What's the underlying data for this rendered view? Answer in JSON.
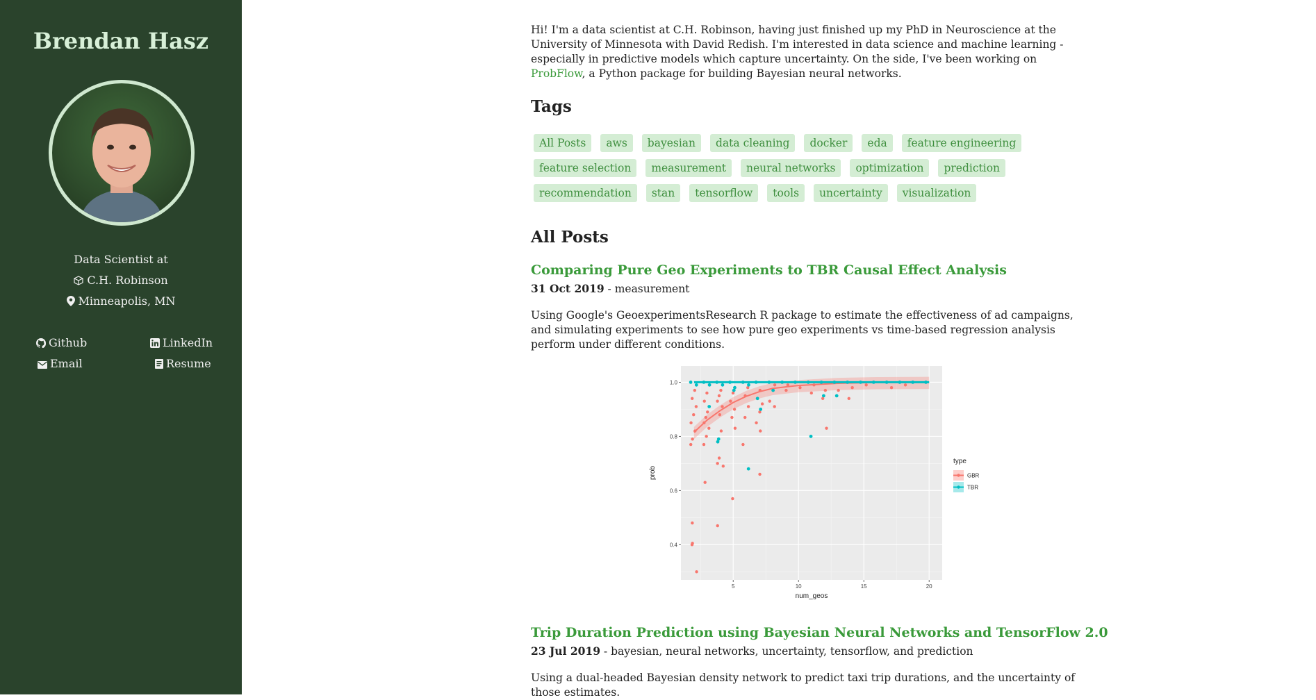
{
  "sidebar": {
    "name": "Brendan Hasz",
    "role": "Data Scientist at",
    "company": "C.H. Robinson",
    "location": "Minneapolis, MN",
    "links": {
      "github": "Github",
      "linkedin": "LinkedIn",
      "email": "Email",
      "resume": "Resume"
    }
  },
  "intro": {
    "text_before": "Hi! I'm a data scientist at C.H. Robinson, having just finished up my PhD in Neuroscience at the University of Minnesota with David Redish. I'm interested in data science and machine learning - especially in predictive models which capture uncertainty. On the side, I've been working on ",
    "link_text": "ProbFlow",
    "text_after": ", a Python package for building Bayesian neural networks."
  },
  "tags_heading": "Tags",
  "tags": [
    [
      "All Posts",
      "aws",
      "bayesian",
      "data cleaning",
      "docker",
      "eda",
      "feature engineering"
    ],
    [
      "feature selection",
      "measurement",
      "neural networks",
      "optimization",
      "prediction"
    ],
    [
      "recommendation",
      "stan",
      "tensorflow",
      "tools",
      "uncertainty",
      "visualization"
    ]
  ],
  "posts_heading": "All Posts",
  "posts": [
    {
      "title": "Comparing Pure Geo Experiments to TBR Causal Effect Analysis",
      "date": "31 Oct 2019",
      "tags": " - measurement",
      "description": "Using Google's GeoexperimentsResearch R package to estimate the effectiveness of ad campaigns, and simulating experiments to see how pure geo experiments vs time-based regression analysis perform under different conditions."
    },
    {
      "title": "Trip Duration Prediction using Bayesian Neural Networks and TensorFlow 2.0",
      "date": "23 Jul 2019",
      "tags": " - bayesian, neural networks, uncertainty, tensorflow, and prediction",
      "description": "Using a dual-headed Bayesian density network to predict taxi trip durations, and the uncertainty of those estimates."
    }
  ],
  "chart_data": {
    "type": "scatter",
    "xlabel": "num_geos",
    "ylabel": "prob",
    "xlim": [
      1,
      21
    ],
    "ylim": [
      0.27,
      1.06
    ],
    "xticks": [
      5,
      10,
      15,
      20
    ],
    "yticks": [
      0.4,
      0.6,
      0.8,
      1.0
    ],
    "ytick_labels": [
      "0.4",
      "0.6",
      "0.8",
      "1.0"
    ],
    "grid": true,
    "legend_title": "type",
    "legend_position": "right",
    "colors": {
      "GBR": "#f8766d",
      "TBR": "#00bfc4",
      "panel": "#ebebeb",
      "grid": "#ffffff"
    },
    "series": [
      {
        "name": "GBR",
        "points": [
          [
            2,
            0.3
          ],
          [
            2,
            0.4
          ],
          [
            2,
            0.405
          ],
          [
            2,
            0.48
          ],
          [
            2,
            0.77
          ],
          [
            2,
            0.79
          ],
          [
            2,
            0.82
          ],
          [
            2,
            0.85
          ],
          [
            2,
            0.88
          ],
          [
            2,
            0.91
          ],
          [
            2,
            0.94
          ],
          [
            2,
            0.97
          ],
          [
            2,
            1.0
          ],
          [
            3,
            0.63
          ],
          [
            3,
            0.77
          ],
          [
            3,
            0.8
          ],
          [
            3,
            0.83
          ],
          [
            3,
            0.85
          ],
          [
            3,
            0.87
          ],
          [
            3,
            0.89
          ],
          [
            3,
            0.93
          ],
          [
            3,
            0.96
          ],
          [
            3,
            0.99
          ],
          [
            3,
            1.0
          ],
          [
            4,
            0.47
          ],
          [
            4,
            0.69
          ],
          [
            4,
            0.7
          ],
          [
            4,
            0.72
          ],
          [
            4,
            0.78
          ],
          [
            4,
            0.82
          ],
          [
            4,
            0.88
          ],
          [
            4,
            0.91
          ],
          [
            4,
            0.93
          ],
          [
            4,
            0.95
          ],
          [
            4,
            0.97
          ],
          [
            4,
            1.0
          ],
          [
            5,
            0.57
          ],
          [
            5,
            0.83
          ],
          [
            5,
            0.87
          ],
          [
            5,
            0.9
          ],
          [
            5,
            0.93
          ],
          [
            5,
            0.96
          ],
          [
            5,
            0.98
          ],
          [
            5,
            1.0
          ],
          [
            6,
            0.77
          ],
          [
            6,
            0.87
          ],
          [
            6,
            0.91
          ],
          [
            6,
            0.95
          ],
          [
            6,
            0.98
          ],
          [
            6,
            1.0
          ],
          [
            7,
            0.66
          ],
          [
            7,
            0.82
          ],
          [
            7,
            0.85
          ],
          [
            7,
            0.89
          ],
          [
            7,
            0.92
          ],
          [
            7,
            0.94
          ],
          [
            7,
            0.97
          ],
          [
            7,
            1.0
          ],
          [
            8,
            0.91
          ],
          [
            8,
            0.93
          ],
          [
            8,
            0.97
          ],
          [
            8,
            0.99
          ],
          [
            8,
            1.0
          ],
          [
            9,
            0.97
          ],
          [
            9,
            0.99
          ],
          [
            9,
            1.0
          ],
          [
            10,
            0.98
          ],
          [
            10,
            1.0
          ],
          [
            11,
            0.96
          ],
          [
            11,
            0.99
          ],
          [
            11,
            1.0
          ],
          [
            12,
            0.83
          ],
          [
            12,
            0.94
          ],
          [
            12,
            0.97
          ],
          [
            12,
            1.0
          ],
          [
            13,
            0.97
          ],
          [
            13,
            1.0
          ],
          [
            14,
            0.94
          ],
          [
            14,
            0.98
          ],
          [
            14,
            1.0
          ],
          [
            15,
            0.99
          ],
          [
            15,
            1.0
          ],
          [
            16,
            1.0
          ],
          [
            17,
            0.98
          ],
          [
            17,
            1.0
          ],
          [
            18,
            0.99
          ],
          [
            18,
            1.0
          ],
          [
            19,
            1.0
          ],
          [
            20,
            1.0
          ]
        ],
        "trend": [
          [
            2,
            0.815
          ],
          [
            3,
            0.86
          ],
          [
            4,
            0.895
          ],
          [
            5,
            0.925
          ],
          [
            6,
            0.948
          ],
          [
            7,
            0.965
          ],
          [
            8,
            0.977
          ],
          [
            10,
            0.988
          ],
          [
            13,
            0.996
          ],
          [
            16,
            0.999
          ],
          [
            20,
            1.0
          ]
        ]
      },
      {
        "name": "TBR",
        "points": [
          [
            2,
            1.0
          ],
          [
            2,
            0.99
          ],
          [
            3,
            0.91
          ],
          [
            3,
            1.0
          ],
          [
            3,
            0.99
          ],
          [
            4,
            0.78
          ],
          [
            4,
            0.79
          ],
          [
            4,
            1.0
          ],
          [
            4,
            0.99
          ],
          [
            5,
            0.97
          ],
          [
            5,
            1.0
          ],
          [
            5,
            0.98
          ],
          [
            6,
            0.68
          ],
          [
            6,
            0.99
          ],
          [
            6,
            1.0
          ],
          [
            7,
            0.9
          ],
          [
            7,
            0.94
          ],
          [
            7,
            1.0
          ],
          [
            8,
            0.97
          ],
          [
            8,
            1.0
          ],
          [
            9,
            1.0
          ],
          [
            10,
            1.0
          ],
          [
            11,
            0.8
          ],
          [
            11,
            1.0
          ],
          [
            12,
            0.95
          ],
          [
            12,
            1.0
          ],
          [
            13,
            0.95
          ],
          [
            13,
            1.0
          ],
          [
            14,
            1.0
          ],
          [
            15,
            1.0
          ],
          [
            16,
            1.0
          ],
          [
            17,
            1.0
          ],
          [
            18,
            1.0
          ],
          [
            19,
            1.0
          ],
          [
            20,
            1.0
          ]
        ],
        "trend": [
          [
            2,
            1.0
          ],
          [
            20,
            1.0
          ]
        ]
      }
    ]
  }
}
